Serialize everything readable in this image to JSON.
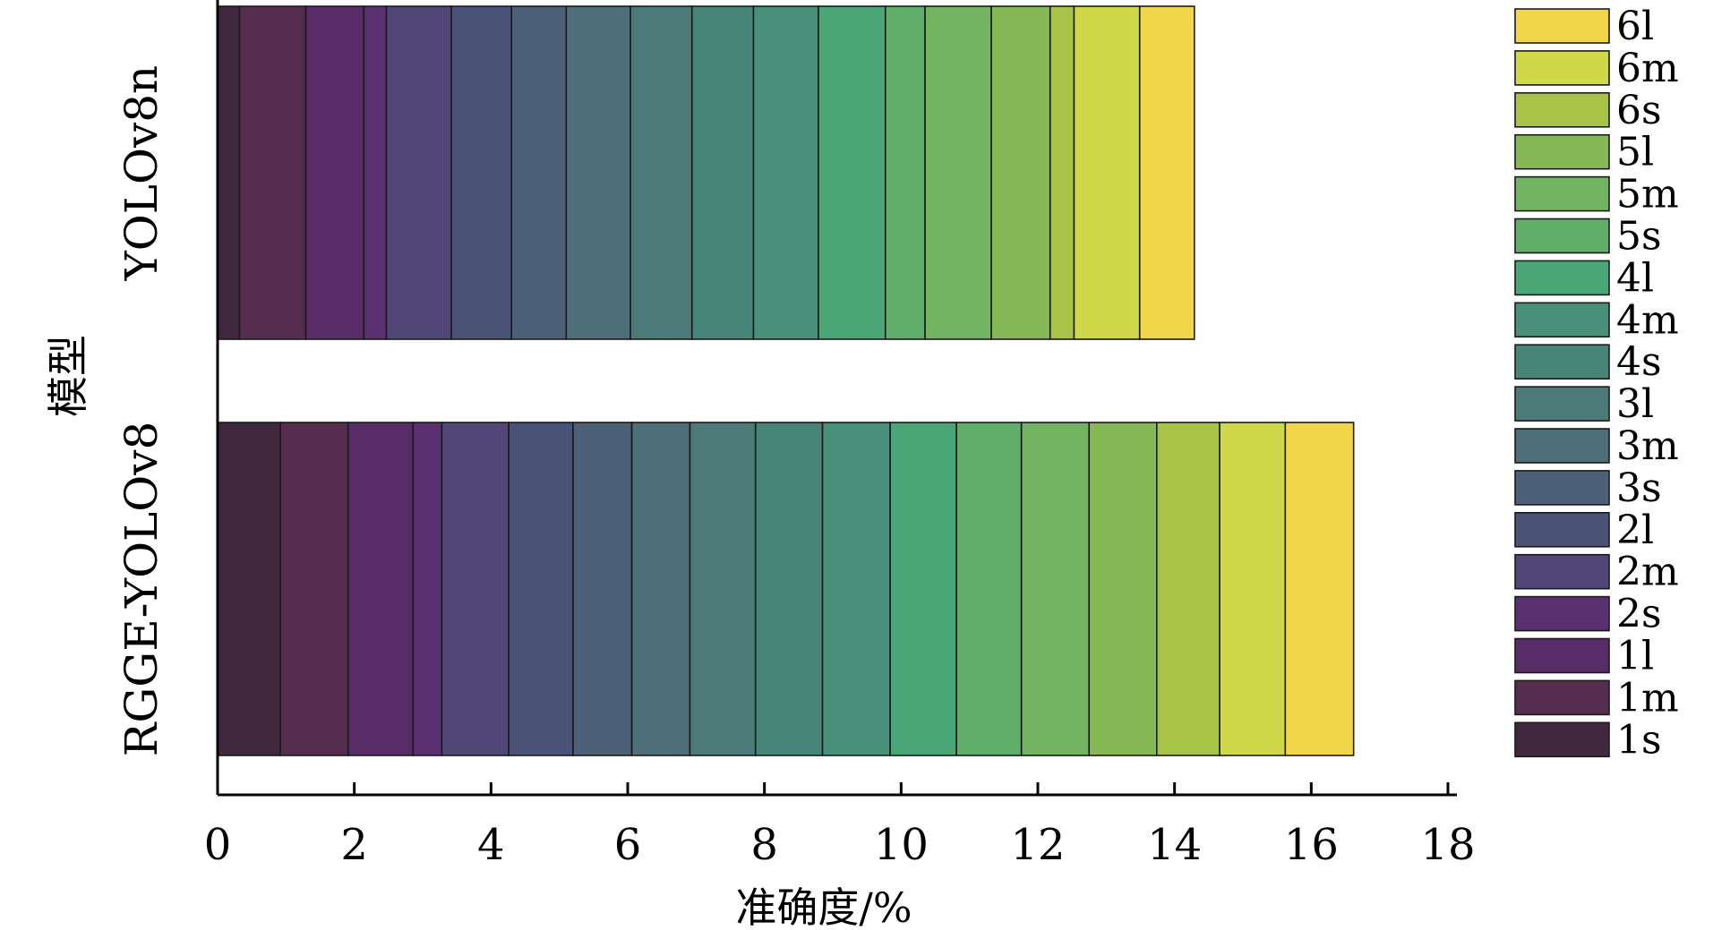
{
  "chart_data": {
    "type": "bar",
    "orientation": "horizontal",
    "stacked": true,
    "title": "",
    "xlabel": "准确度/%",
    "ylabel": "模型",
    "xlim": [
      0,
      18
    ],
    "xticks": [
      0,
      2,
      4,
      6,
      8,
      10,
      12,
      14,
      16,
      18
    ],
    "grid": false,
    "legend_position": "right",
    "categories": [
      "YOLOv8n",
      "RGGE-YOLOv8"
    ],
    "series": [
      {
        "name": "1s",
        "color": "#40293e",
        "values": [
          0.32,
          0.92
        ]
      },
      {
        "name": "1m",
        "color": "#552e4f",
        "values": [
          0.97,
          0.99
        ]
      },
      {
        "name": "1l",
        "color": "#582c66",
        "values": [
          0.85,
          0.95
        ]
      },
      {
        "name": "2s",
        "color": "#5a3070",
        "values": [
          0.33,
          0.42
        ]
      },
      {
        "name": "2m",
        "color": "#504777",
        "values": [
          0.95,
          0.98
        ]
      },
      {
        "name": "2l",
        "color": "#4b5277",
        "values": [
          0.88,
          0.94
        ]
      },
      {
        "name": "3s",
        "color": "#4c6077",
        "values": [
          0.8,
          0.86
        ]
      },
      {
        "name": "3m",
        "color": "#4e6e79",
        "values": [
          0.94,
          0.85
        ]
      },
      {
        "name": "3l",
        "color": "#4b7a79",
        "values": [
          0.9,
          0.96
        ]
      },
      {
        "name": "4s",
        "color": "#478579",
        "values": [
          0.9,
          0.98
        ]
      },
      {
        "name": "4m",
        "color": "#48907a",
        "values": [
          0.95,
          0.99
        ]
      },
      {
        "name": "4l",
        "color": "#4aa677",
        "values": [
          0.98,
          0.97
        ]
      },
      {
        "name": "5s",
        "color": "#5fae6a",
        "values": [
          0.58,
          0.95
        ]
      },
      {
        "name": "5m",
        "color": "#72b461",
        "values": [
          0.97,
          0.99
        ]
      },
      {
        "name": "5l",
        "color": "#86b855",
        "values": [
          0.86,
          0.99
        ]
      },
      {
        "name": "6s",
        "color": "#a8c448",
        "values": [
          0.35,
          0.92
        ]
      },
      {
        "name": "6m",
        "color": "#cfd849",
        "values": [
          0.96,
          0.96
        ]
      },
      {
        "name": "6l",
        "color": "#f2d64a",
        "values": [
          0.8,
          1.0
        ]
      }
    ]
  }
}
